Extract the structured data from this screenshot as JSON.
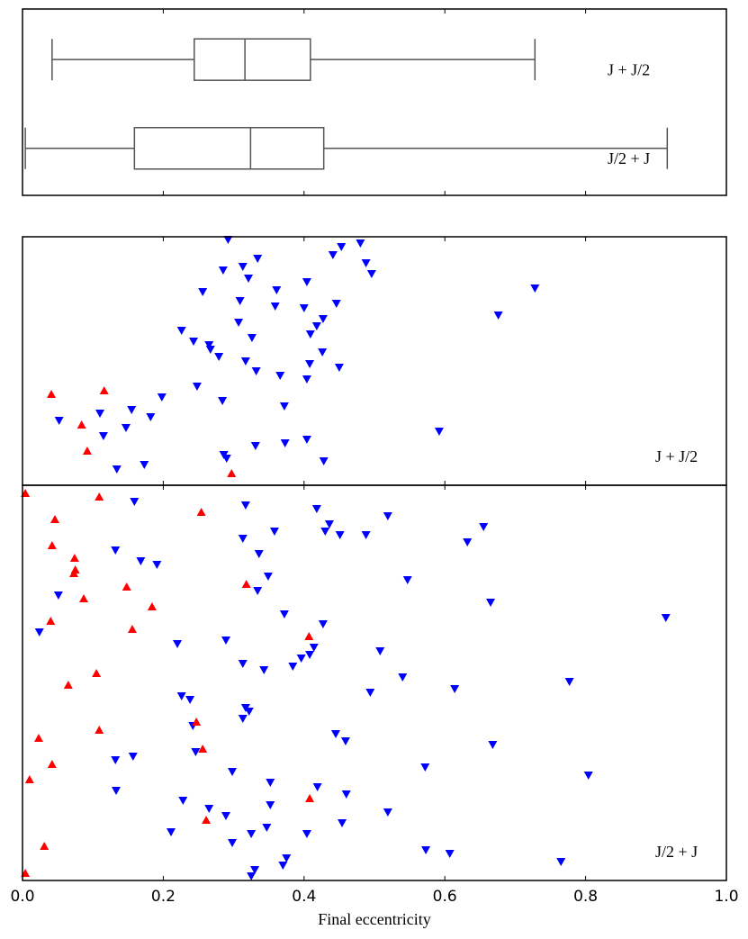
{
  "chart_data": [
    {
      "type": "box",
      "categories": [
        "J + J/2",
        "J/2 + J"
      ],
      "color": "#555555",
      "xlim": [
        0,
        1
      ],
      "boxes": [
        {
          "min": 0.042,
          "q1": 0.244,
          "median": 0.316,
          "q3": 0.409,
          "max": 0.728
        },
        {
          "min": 0.004,
          "q1": 0.159,
          "median": 0.324,
          "q3": 0.428,
          "max": 0.916
        }
      ]
    },
    {
      "type": "scatter",
      "label": "J + J/2",
      "xlim": [
        0,
        1
      ],
      "ylim": [
        0,
        276
      ],
      "series": [
        {
          "color": "#0000ff",
          "marker": "down",
          "x": [
            0.292,
            0.453,
            0.48,
            0.441,
            0.334,
            0.313,
            0.285,
            0.488,
            0.496,
            0.321,
            0.404,
            0.256,
            0.361,
            0.728,
            0.309,
            0.446,
            0.359,
            0.4,
            0.427,
            0.676,
            0.307,
            0.418,
            0.226,
            0.409,
            0.243,
            0.265,
            0.267,
            0.326,
            0.279,
            0.426,
            0.317,
            0.408,
            0.332,
            0.45,
            0.366,
            0.404,
            0.248,
            0.198,
            0.284,
            0.372,
            0.155,
            0.11,
            0.182,
            0.052,
            0.147,
            0.592,
            0.115,
            0.331,
            0.373,
            0.404,
            0.286,
            0.29,
            0.173,
            0.134,
            0.428
          ],
          "y": [
            273,
            265,
            269,
            256,
            252,
            243,
            239,
            247,
            235,
            230,
            226,
            215,
            217,
            219,
            205,
            202,
            199,
            197,
            185,
            189,
            181,
            177,
            172,
            168,
            160,
            156,
            151,
            164,
            143,
            148,
            138,
            135,
            127,
            131,
            122,
            118,
            110,
            98,
            94,
            88,
            84,
            80,
            76,
            72,
            64,
            60,
            55,
            44,
            47,
            51,
            34,
            30,
            23,
            18,
            27
          ]
        },
        {
          "color": "#ff0000",
          "marker": "up",
          "x": [
            0.041,
            0.116,
            0.084,
            0.092,
            0.297
          ],
          "y": [
            101,
            105,
            67,
            38,
            13
          ]
        }
      ]
    },
    {
      "type": "scatter",
      "label": "J/2 + J",
      "xlim": [
        0,
        1
      ],
      "ylim": [
        0,
        439
      ],
      "xlabel": "Final eccentricity",
      "xticks": [
        {
          "value": 0,
          "label": "0.0"
        },
        0.2,
        0.4,
        0.6,
        0.8,
        {
          "value": 1,
          "label": "1.0"
        }
      ],
      "series": [
        {
          "color": "#0000ff",
          "marker": "down",
          "x": [
            0.159,
            0.317,
            0.418,
            0.436,
            0.358,
            0.43,
            0.451,
            0.519,
            0.655,
            0.632,
            0.313,
            0.488,
            0.132,
            0.336,
            0.168,
            0.191,
            0.349,
            0.547,
            0.334,
            0.051,
            0.665,
            0.372,
            0.427,
            0.914,
            0.024,
            0.289,
            0.22,
            0.414,
            0.508,
            0.408,
            0.396,
            0.384,
            0.343,
            0.313,
            0.54,
            0.777,
            0.614,
            0.494,
            0.226,
            0.238,
            0.317,
            0.322,
            0.313,
            0.445,
            0.459,
            0.242,
            0.668,
            0.246,
            0.157,
            0.132,
            0.572,
            0.298,
            0.804,
            0.352,
            0.133,
            0.46,
            0.419,
            0.228,
            0.352,
            0.265,
            0.519,
            0.289,
            0.454,
            0.211,
            0.347,
            0.325,
            0.404,
            0.298,
            0.375,
            0.573,
            0.607,
            0.37,
            0.765,
            0.33,
            0.325
          ],
          "y": [
            421,
            417,
            413,
            396,
            388,
            388,
            384,
            405,
            393,
            376,
            380,
            384,
            367,
            363,
            355,
            351,
            338,
            334,
            322,
            317,
            309,
            296,
            285,
            292,
            276,
            267,
            263,
            259,
            255,
            251,
            247,
            238,
            234,
            241,
            226,
            221,
            213,
            209,
            205,
            201,
            192,
            188,
            180,
            163,
            155,
            172,
            151,
            143,
            138,
            134,
            126,
            121,
            117,
            109,
            100,
            96,
            104,
            89,
            84,
            80,
            76,
            72,
            64,
            54,
            59,
            52,
            52,
            42,
            25,
            34,
            30,
            17,
            21,
            12,
            5
          ]
        },
        {
          "color": "#ff0000",
          "marker": "up",
          "x": [
            0.004,
            0.109,
            0.254,
            0.046,
            0.042,
            0.074,
            0.075,
            0.073,
            0.148,
            0.318,
            0.087,
            0.184,
            0.04,
            0.156,
            0.407,
            0.105,
            0.065,
            0.109,
            0.247,
            0.256,
            0.023,
            0.042,
            0.01,
            0.408,
            0.261,
            0.031,
            0.004
          ],
          "y": [
            430,
            426,
            409,
            401,
            372,
            358,
            345,
            341,
            326,
            329,
            313,
            304,
            288,
            279,
            271,
            230,
            217,
            167,
            176,
            146,
            158,
            129,
            112,
            91,
            67,
            38,
            8
          ]
        }
      ]
    }
  ]
}
